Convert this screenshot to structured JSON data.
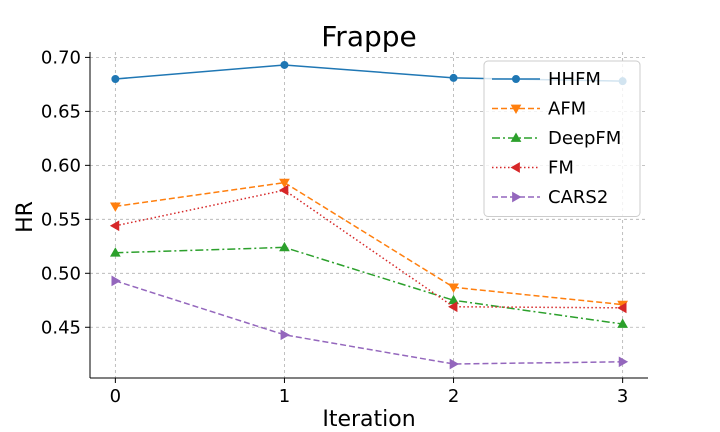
{
  "chart_data": {
    "type": "line",
    "title": "Frappe",
    "xlabel": "Iteration",
    "ylabel": "HR",
    "x": [
      0,
      1,
      2,
      3
    ],
    "xlim": [
      -0.15,
      3.15
    ],
    "ylim": [
      0.403,
      0.705
    ],
    "yticks": [
      0.45,
      0.5,
      0.55,
      0.6,
      0.65,
      0.7
    ],
    "ytick_labels": [
      "0.45",
      "0.50",
      "0.55",
      "0.60",
      "0.65",
      "0.70"
    ],
    "xticks": [
      0,
      1,
      2,
      3
    ],
    "xtick_labels": [
      "0",
      "1",
      "2",
      "3"
    ],
    "grid": true,
    "legend_position": "top-right",
    "series": [
      {
        "name": "HHFM",
        "values": [
          0.68,
          0.693,
          0.681,
          0.678
        ],
        "color": "#1f77b4",
        "dash": "",
        "marker": "circle"
      },
      {
        "name": "AFM",
        "values": [
          0.562,
          0.584,
          0.487,
          0.471
        ],
        "color": "#ff7f0e",
        "dash": "6,3",
        "marker": "triangle-down"
      },
      {
        "name": "DeepFM",
        "values": [
          0.519,
          0.524,
          0.475,
          0.453
        ],
        "color": "#2ca02c",
        "dash": "8,3,2,3",
        "marker": "triangle-up"
      },
      {
        "name": "FM",
        "values": [
          0.544,
          0.577,
          0.469,
          0.468
        ],
        "color": "#d62728",
        "dash": "1.5,2.5",
        "marker": "triangle-left"
      },
      {
        "name": "CARS2",
        "values": [
          0.493,
          0.443,
          0.416,
          0.418
        ],
        "color": "#9467bd",
        "dash": "6,3",
        "marker": "triangle-right"
      }
    ]
  }
}
